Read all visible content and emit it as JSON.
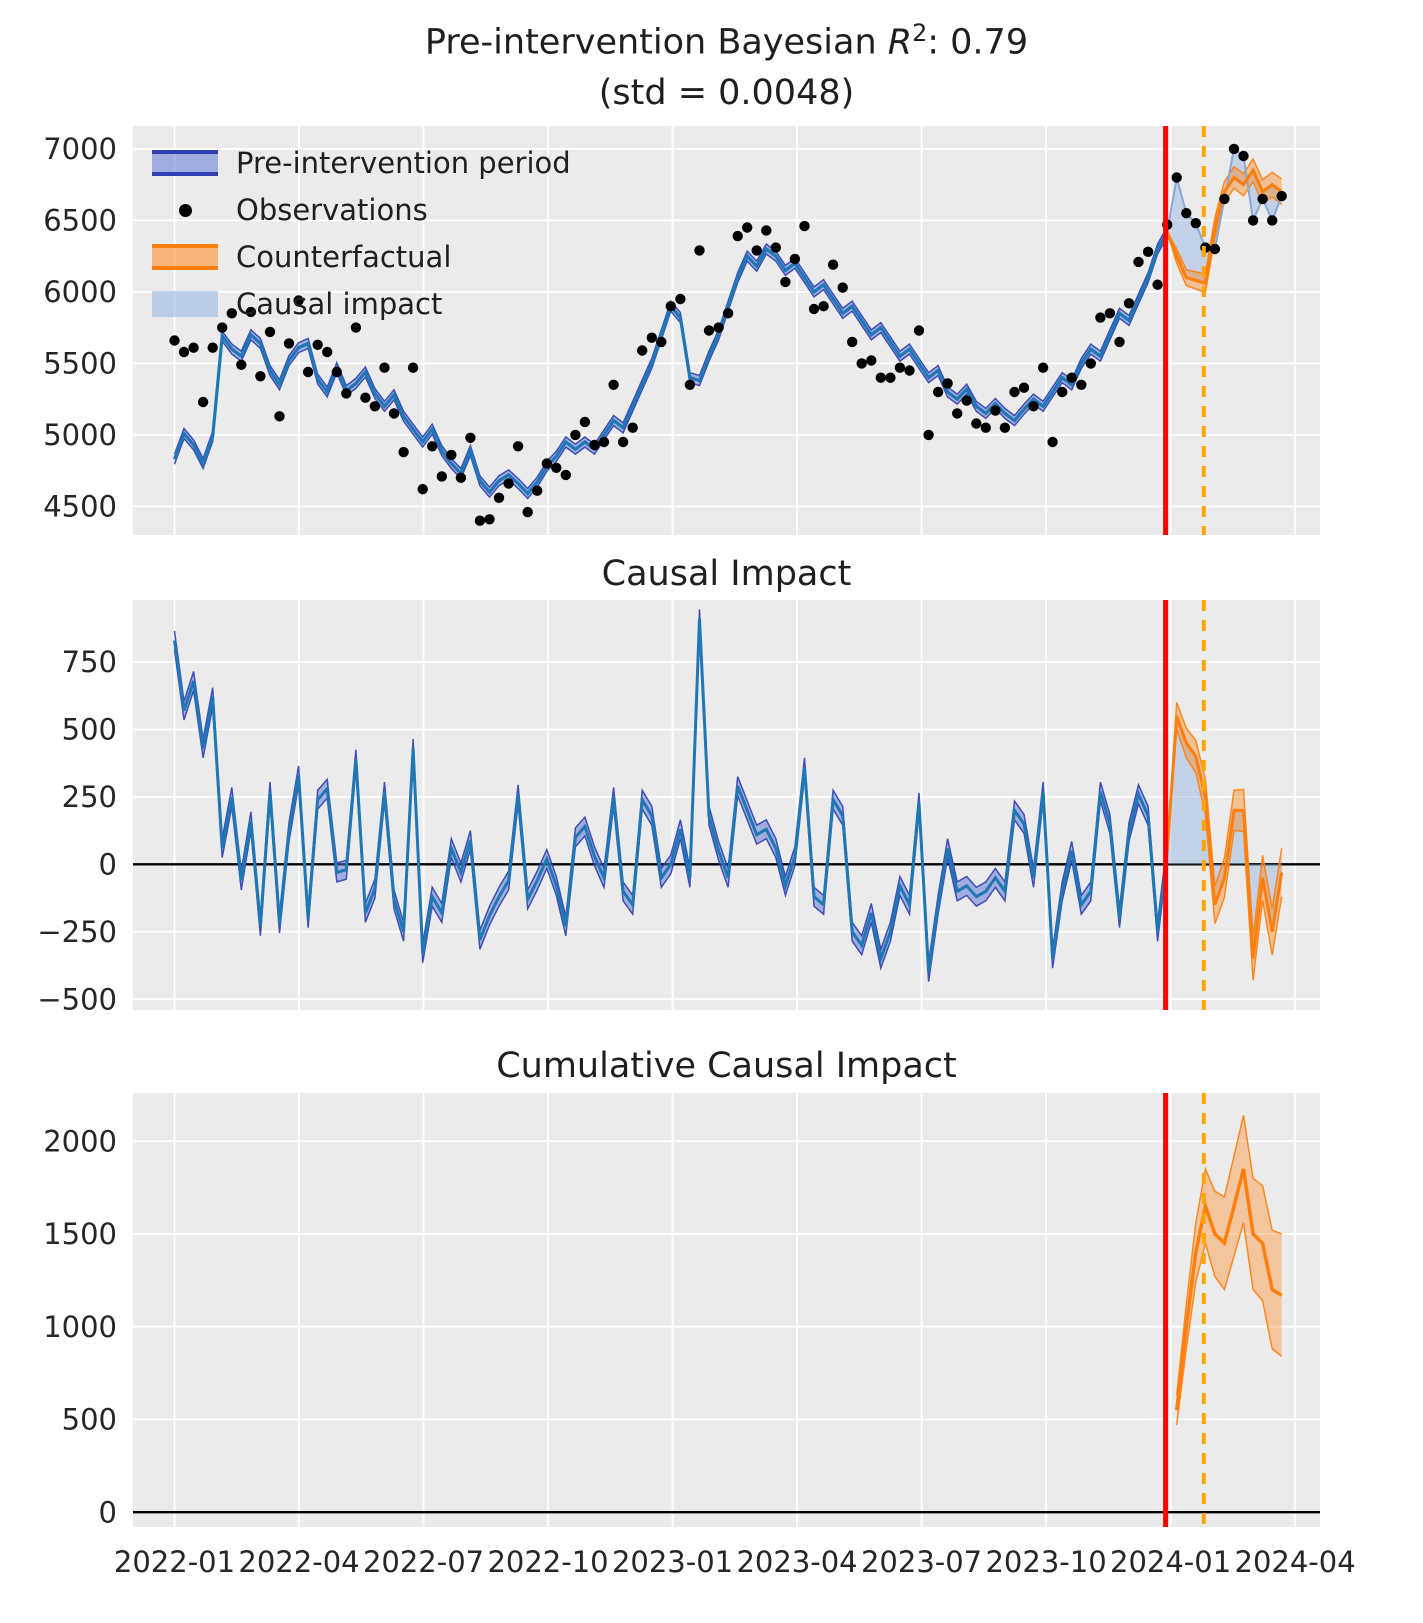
{
  "titles": {
    "plot1": {
      "prefix": "Pre-intervention Bayesian ",
      "r": "R",
      "exp": "2",
      "suffix": ": 0.79",
      "line2": "(std = 0.0048)"
    },
    "plot2": "Causal Impact",
    "plot3": "Cumulative Causal Impact"
  },
  "legend": {
    "items": [
      {
        "label": "Pre-intervention period",
        "type": "band",
        "fill": "#5a6fd4",
        "edge": "#3040b0"
      },
      {
        "label": "Observations",
        "type": "dot",
        "fill": "#000000"
      },
      {
        "label": "Counterfactual",
        "type": "band",
        "fill": "#ff7f0e",
        "edge": "#ff7f0e"
      },
      {
        "label": "Causal impact",
        "type": "patch",
        "fill": "#9ab7e0"
      }
    ]
  },
  "colors": {
    "line_blue": "#1f77b4",
    "pre_band_fill": "#5a6fd4",
    "pre_band_edge": "#3040b0",
    "counterfactual": "#ff7f0e",
    "impact_fill": "#9ab7e0",
    "impact_edge": "#86a9d8",
    "treatment_line": "#ff0000",
    "reference_line": "#ffa500",
    "observation": "#000000",
    "zero_line": "#000000",
    "plot_bg": "#ebebeb",
    "grid": "#ffffff",
    "text": "#262626"
  },
  "chart_data": [
    {
      "type": "line",
      "title": "Pre-intervention Bayesian R^2: 0.79 (std = 0.0048)",
      "xlabel": "",
      "ylabel": "",
      "x_start_date": "2022-01-02",
      "x_step_days": 7,
      "xlim_months": [
        -1.0,
        27.6
      ],
      "xticks": {
        "months": [
          0,
          3,
          6,
          9,
          12,
          15,
          18,
          21,
          24,
          27
        ],
        "labels": [
          "2022-01",
          "2022-04",
          "2022-07",
          "2022-10",
          "2023-01",
          "2023-04",
          "2023-07",
          "2023-10",
          "2024-01",
          "2024-04"
        ]
      },
      "ylim": [
        4300,
        7160
      ],
      "yticks": [
        4500,
        5000,
        5500,
        6000,
        6500,
        7000
      ],
      "treatment_month": 23.88,
      "reference_month": 24.8,
      "legend_entries": [
        "Pre-intervention period",
        "Observations",
        "Counterfactual",
        "Causal impact"
      ],
      "pre": {
        "band_halfwidth": 35,
        "mean": [
          4830,
          5010,
          4930,
          4800,
          4990,
          5690,
          5600,
          5550,
          5700,
          5640,
          5450,
          5350,
          5520,
          5610,
          5640,
          5390,
          5300,
          5470,
          5310,
          5360,
          5440,
          5290,
          5200,
          5280,
          5130,
          5040,
          4950,
          5040,
          4890,
          4800,
          4730,
          4890,
          4680,
          4600,
          4680,
          4720,
          4660,
          4590,
          4670,
          4780,
          4850,
          4950,
          4900,
          4950,
          4900,
          5000,
          5100,
          5050,
          5200,
          5350,
          5500,
          5700,
          5900,
          5820,
          5400,
          5380,
          5550,
          5700,
          5900,
          6100,
          6250,
          6180,
          6300,
          6250,
          6150,
          6200,
          6100,
          6000,
          6050,
          5950,
          5850,
          5900,
          5800,
          5700,
          5750,
          5650,
          5550,
          5600,
          5500,
          5400,
          5450,
          5300,
          5250,
          5320,
          5200,
          5150,
          5220,
          5150,
          5100,
          5180,
          5250,
          5200,
          5300,
          5400,
          5350,
          5500,
          5600,
          5550,
          5700,
          5850,
          5800,
          5950,
          6100,
          6300,
          6420
        ],
        "observations": [
          5660,
          5580,
          5610,
          5230,
          5610,
          5750,
          5850,
          5490,
          5860,
          5410,
          5720,
          5130,
          5640,
          5940,
          5440,
          5630,
          5580,
          5440,
          5290,
          5750,
          5260,
          5200,
          5470,
          5150,
          4880,
          5470,
          4620,
          4920,
          4710,
          4860,
          4700,
          4980,
          4400,
          4410,
          4560,
          4660,
          4920,
          4460,
          4610,
          4800,
          4770,
          4720,
          5000,
          5090,
          4930,
          4950,
          5350,
          4950,
          5050,
          5590,
          5680,
          5650,
          5900,
          5950,
          5350,
          6290,
          5730,
          5750,
          5850,
          6390,
          6450,
          6290,
          6430,
          6310,
          6070,
          6230,
          6460,
          5880,
          5900,
          6190,
          6030,
          5650,
          5500,
          5520,
          5400,
          5400,
          5470,
          5450,
          5730,
          5000,
          5300,
          5360,
          5150,
          5240,
          5080,
          5050,
          5170,
          5050,
          5300,
          5330,
          5200,
          5470,
          4950,
          5300,
          5400,
          5350,
          5500,
          5820,
          5850,
          5650,
          5920,
          6210,
          6280,
          6050,
          6470
        ]
      },
      "post": {
        "counterfactual_mean": [
          6250,
          6100,
          6080,
          6060,
          6450,
          6700,
          6800,
          6750,
          6850,
          6700,
          6750,
          6700
        ],
        "observations": [
          6800,
          6550,
          6480,
          6310,
          6300,
          6650,
          7000,
          6950,
          6500,
          6650,
          6500,
          6670
        ],
        "band_halfwidth": [
          50,
          55,
          60,
          65,
          70,
          72,
          75,
          78,
          80,
          83,
          86,
          90
        ]
      }
    },
    {
      "type": "line",
      "title": "Causal Impact",
      "xlabel": "",
      "ylabel": "",
      "ylim": [
        -540,
        980
      ],
      "yticks": [
        -500,
        -250,
        0,
        250,
        500,
        750
      ],
      "band_halfwidth_pre": 35,
      "pre_impact": [
        830,
        570,
        680,
        430,
        620,
        60,
        250,
        -60,
        160,
        -230,
        270,
        -220,
        120,
        330,
        -200,
        240,
        280,
        -30,
        -20,
        390,
        -180,
        -90,
        270,
        -130,
        -250,
        430,
        -330,
        -120,
        -180,
        60,
        -30,
        90,
        -280,
        -190,
        -120,
        -60,
        260,
        -130,
        -60,
        20,
        -80,
        -230,
        100,
        140,
        30,
        -50,
        250,
        -100,
        -150,
        240,
        180,
        -50,
        0,
        130,
        -50,
        910,
        180,
        50,
        -50,
        290,
        200,
        110,
        130,
        60,
        -80,
        30,
        360,
        -120,
        -150,
        240,
        180,
        -250,
        -300,
        -180,
        -350,
        -250,
        -80,
        -150,
        230,
        -400,
        -150,
        60,
        -100,
        -80,
        -120,
        -100,
        -50,
        -100,
        200,
        150,
        -50,
        270,
        -350,
        -100,
        50,
        -150,
        -100,
        270,
        150,
        -200,
        120,
        260,
        180,
        -250,
        50
      ],
      "post_impact": [
        550,
        450,
        400,
        250,
        -150,
        -50,
        200,
        200,
        -350,
        -50,
        -250,
        -30
      ],
      "band_halfwidth_post": [
        50,
        55,
        60,
        65,
        70,
        72,
        75,
        78,
        80,
        83,
        86,
        90
      ]
    },
    {
      "type": "line",
      "title": "Cumulative Causal Impact",
      "xlabel": "",
      "ylabel": "",
      "ylim": [
        -80,
        2260
      ],
      "yticks": [
        0,
        500,
        1000,
        1500,
        2000
      ],
      "post_cumulative": [
        550,
        1000,
        1400,
        1650,
        1500,
        1450,
        1650,
        1850,
        1500,
        1450,
        1200,
        1170
      ],
      "band_halfwidth": [
        80,
        120,
        160,
        200,
        230,
        250,
        270,
        290,
        300,
        310,
        320,
        330
      ]
    }
  ]
}
